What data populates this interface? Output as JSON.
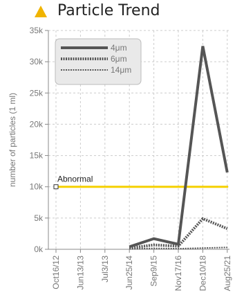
{
  "header": {
    "icon": "warning-triangle-icon",
    "title": "Particle Trend"
  },
  "colors": {
    "warning_icon": "#f0b400",
    "threshold": "#f5d000",
    "series": "#555555",
    "grid": "#cccccc"
  },
  "chart_data": {
    "type": "line",
    "title": "Particle Trend",
    "xlabel": "",
    "ylabel": "number of particles (1 ml)",
    "categories": [
      "Oct16/12",
      "Jun13/13",
      "Jul3/13",
      "Jun25/14",
      "Sep9/15",
      "Nov17/16",
      "Dec10/18",
      "Aug25/21"
    ],
    "ylim": [
      0,
      35000
    ],
    "yticks": [
      0,
      5000,
      10000,
      15000,
      20000,
      25000,
      30000,
      35000
    ],
    "ytick_labels": [
      "0k",
      "5k",
      "10k",
      "15k",
      "20k",
      "25k",
      "30k",
      "35k"
    ],
    "grid": true,
    "legend_position": "top-left",
    "series": [
      {
        "name": "4μm",
        "style": "solid",
        "values": [
          null,
          null,
          null,
          400,
          1700,
          800,
          32500,
          12300
        ]
      },
      {
        "name": "6μm",
        "style": "dotted",
        "values": [
          null,
          null,
          null,
          200,
          700,
          500,
          4900,
          3300
        ]
      },
      {
        "name": "14μm",
        "style": "dashed",
        "values": [
          null,
          null,
          null,
          50,
          150,
          100,
          200,
          300
        ]
      }
    ],
    "threshold": {
      "label": "Abnormal",
      "value": 10000
    }
  }
}
